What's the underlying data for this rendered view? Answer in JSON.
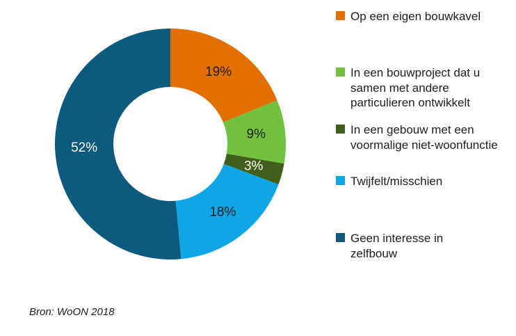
{
  "chart_data": {
    "type": "pie",
    "variant": "donut",
    "title": "",
    "categories": [
      "Op een eigen bouwkavel",
      "In een bouwproject dat u samen met andere particulieren ontwikkelt",
      "In een gebouw met een voormalige niet-woonfunctie",
      "Twijfelt/misschien",
      "Geen interesse in zelfbouw"
    ],
    "values": [
      19,
      9,
      3,
      18,
      52
    ],
    "value_labels": [
      "19%",
      "9%",
      "3%",
      "18%",
      "52%"
    ],
    "colors": [
      "#E17000",
      "#72C13E",
      "#415F1A",
      "#0FA6E6",
      "#0C5A7D"
    ],
    "value_label_colors": [
      "#1D1D1B",
      "#1D1D1B",
      "#FFFFFF",
      "#1D1D1B",
      "#FFFFFF"
    ],
    "start_angle": "top",
    "direction": "clockwise",
    "legend_position": "right",
    "source": "Bron: WoON 2018"
  }
}
